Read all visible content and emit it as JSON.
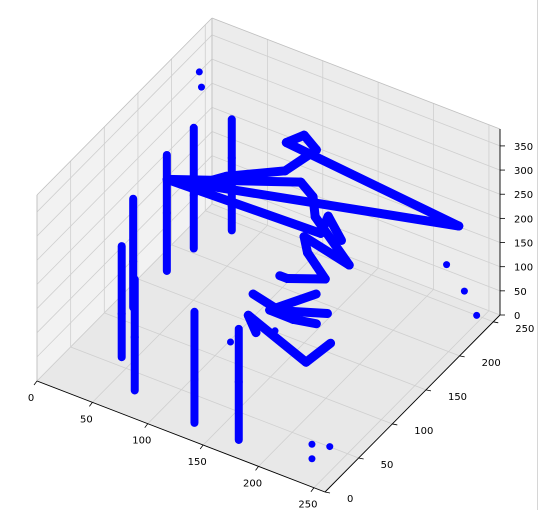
{
  "chart_data": {
    "type": "scatter",
    "projection": "3d",
    "title": "",
    "xlabel": "",
    "ylabel": "",
    "zlabel": "",
    "xlim": [
      0,
      260
    ],
    "ylim": [
      0,
      260
    ],
    "zlim": [
      0,
      385
    ],
    "xticks": [
      "0",
      "50",
      "100",
      "150",
      "200",
      "250"
    ],
    "yticks": [
      "0",
      "50",
      "100",
      "150",
      "200",
      "250"
    ],
    "zticks": [
      "0",
      "50",
      "100",
      "150",
      "200",
      "250",
      "300",
      "350"
    ],
    "grid": true,
    "legend": "none",
    "series": [
      {
        "color": "#0000ff",
        "points": [
          [
            30,
            240,
            230
          ],
          [
            30,
            240,
            150
          ],
          [
            30,
            240,
            50
          ],
          [
            30,
            240,
            0
          ],
          [
            20,
            200,
            260
          ],
          [
            20,
            200,
            120
          ],
          [
            20,
            200,
            10
          ],
          [
            20,
            160,
            260
          ],
          [
            20,
            160,
            140
          ],
          [
            20,
            160,
            20
          ],
          [
            20,
            110,
            240
          ],
          [
            20,
            110,
            110
          ],
          [
            20,
            110,
            15
          ],
          [
            40,
            60,
            230
          ],
          [
            40,
            60,
            90
          ],
          [
            40,
            60,
            0
          ],
          [
            70,
            30,
            230
          ],
          [
            70,
            30,
            110
          ],
          [
            70,
            30,
            0
          ],
          [
            130,
            20,
            230
          ],
          [
            130,
            20,
            90
          ],
          [
            130,
            20,
            0
          ],
          [
            170,
            20,
            230
          ],
          [
            170,
            20,
            120
          ],
          [
            170,
            20,
            0
          ],
          [
            230,
            30,
            30
          ],
          [
            230,
            30,
            0
          ],
          [
            240,
            40,
            20
          ],
          [
            25,
            200,
            380
          ],
          [
            30,
            195,
            360
          ],
          [
            230,
            230,
            120
          ],
          [
            240,
            240,
            60
          ],
          [
            245,
            250,
            0
          ],
          [
            238,
            235,
            200
          ],
          [
            140,
            140,
            420
          ],
          [
            150,
            150,
            430
          ],
          [
            155,
            160,
            390
          ],
          [
            145,
            130,
            380
          ],
          [
            110,
            100,
            380
          ],
          [
            90,
            80,
            370
          ],
          [
            75,
            70,
            385
          ],
          [
            150,
            145,
            340
          ],
          [
            155,
            155,
            300
          ],
          [
            160,
            150,
            270
          ],
          [
            165,
            150,
            240
          ],
          [
            190,
            120,
            340
          ],
          [
            205,
            115,
            310
          ],
          [
            215,
            110,
            275
          ],
          [
            150,
            150,
            220
          ],
          [
            150,
            155,
            180
          ],
          [
            155,
            160,
            150
          ],
          [
            160,
            165,
            120
          ],
          [
            135,
            150,
            120
          ],
          [
            125,
            155,
            110
          ],
          [
            170,
            135,
            140
          ],
          [
            125,
            140,
            60
          ],
          [
            140,
            150,
            40
          ],
          [
            155,
            160,
            30
          ],
          [
            165,
            160,
            60
          ],
          [
            110,
            140,
            80
          ],
          [
            180,
            140,
            40
          ],
          [
            170,
            120,
            20
          ],
          [
            130,
            100,
            110
          ],
          [
            140,
            95,
            90
          ],
          [
            145,
            115,
            70
          ],
          [
            120,
            90,
            60
          ]
        ]
      }
    ]
  }
}
